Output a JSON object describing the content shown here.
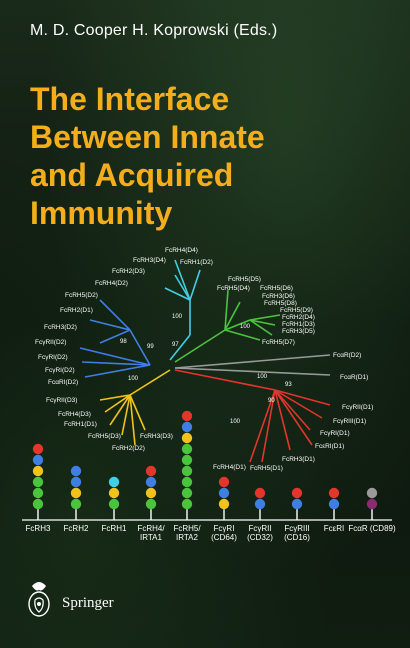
{
  "cover": {
    "editors": "M. D. Cooper    H. Koprowski (Eds.)",
    "title_lines": [
      "The Interface",
      "Between Innate",
      "and Acquired",
      "Immunity"
    ],
    "publisher": "Springer"
  },
  "tree": {
    "labels": [
      "FcRH4(D4)",
      "FcRH3(D4)",
      "FcRH1(D2)",
      "FcRH2(D3)",
      "FcRH4(D2)",
      "FcRH5(D2)",
      "FcRH2(D1)",
      "FcRH3(D2)",
      "FcγRII(D2)",
      "FcγRI(D2)",
      "FcγRI(D2)",
      "FcαRI(D2)",
      "FcRH5(D5)",
      "FcRH5(D4)",
      "FcRH5(D6)",
      "FcRH3(D6)",
      "FcRH5(D8)",
      "FcRH5(D9)",
      "FcRH2(D4)",
      "FcRH1(D3)",
      "FcRH3(D5)",
      "FcRH5(D7)",
      "FcαR(D2)",
      "FcαR(D1)",
      "FcγRII(D3)",
      "FcRH4(D3)",
      "FcRH1(D1)",
      "FcRH5(D3)",
      "FcRH3(D3)",
      "FcRH2(D2)",
      "FcγRII(D1)",
      "FcγRIII(D1)",
      "FcγRI(D1)",
      "FcεRI(D1)",
      "FcRH3(D1)",
      "FcRH4(D1)",
      "FcRH5(D1)"
    ],
    "bootstrap": [
      "100",
      "100",
      "98",
      "99",
      "97",
      "100",
      "100",
      "93",
      "90",
      "100"
    ]
  },
  "receptors": [
    {
      "name": "FcRH3",
      "domains": [
        "red",
        "blue",
        "yellow",
        "green",
        "green",
        "green"
      ]
    },
    {
      "name": "FcRH2",
      "domains": [
        "blue",
        "blue",
        "yellow",
        "green"
      ]
    },
    {
      "name": "FcRH1",
      "domains": [
        "cyan",
        "yellow",
        "green"
      ]
    },
    {
      "name": "FcRH4/ IRTA1",
      "domains": [
        "red",
        "blue",
        "yellow",
        "green"
      ]
    },
    {
      "name": "FcRH5/ IRTA2",
      "domains": [
        "red",
        "blue",
        "yellow",
        "green",
        "green",
        "green",
        "green",
        "green",
        "green"
      ]
    },
    {
      "name": "FcγRI (CD64)",
      "domains": [
        "red",
        "blue",
        "yellow"
      ]
    },
    {
      "name": "FcγRII (CD32)",
      "domains": [
        "red",
        "blue"
      ]
    },
    {
      "name": "FcγRIII (CD16)",
      "domains": [
        "red",
        "blue"
      ]
    },
    {
      "name": "FcεRI",
      "domains": [
        "red",
        "blue"
      ]
    },
    {
      "name": "FcαR (CD89)",
      "domains": [
        "grey",
        "purple"
      ]
    }
  ],
  "colors": {
    "title": "#f4ae1b",
    "red": "#e2352b",
    "blue": "#3f7fe3",
    "yellow": "#f2c21a",
    "green": "#49c43c",
    "cyan": "#41cfe6",
    "grey": "#9a9a9a",
    "purple": "#8a2a70"
  }
}
